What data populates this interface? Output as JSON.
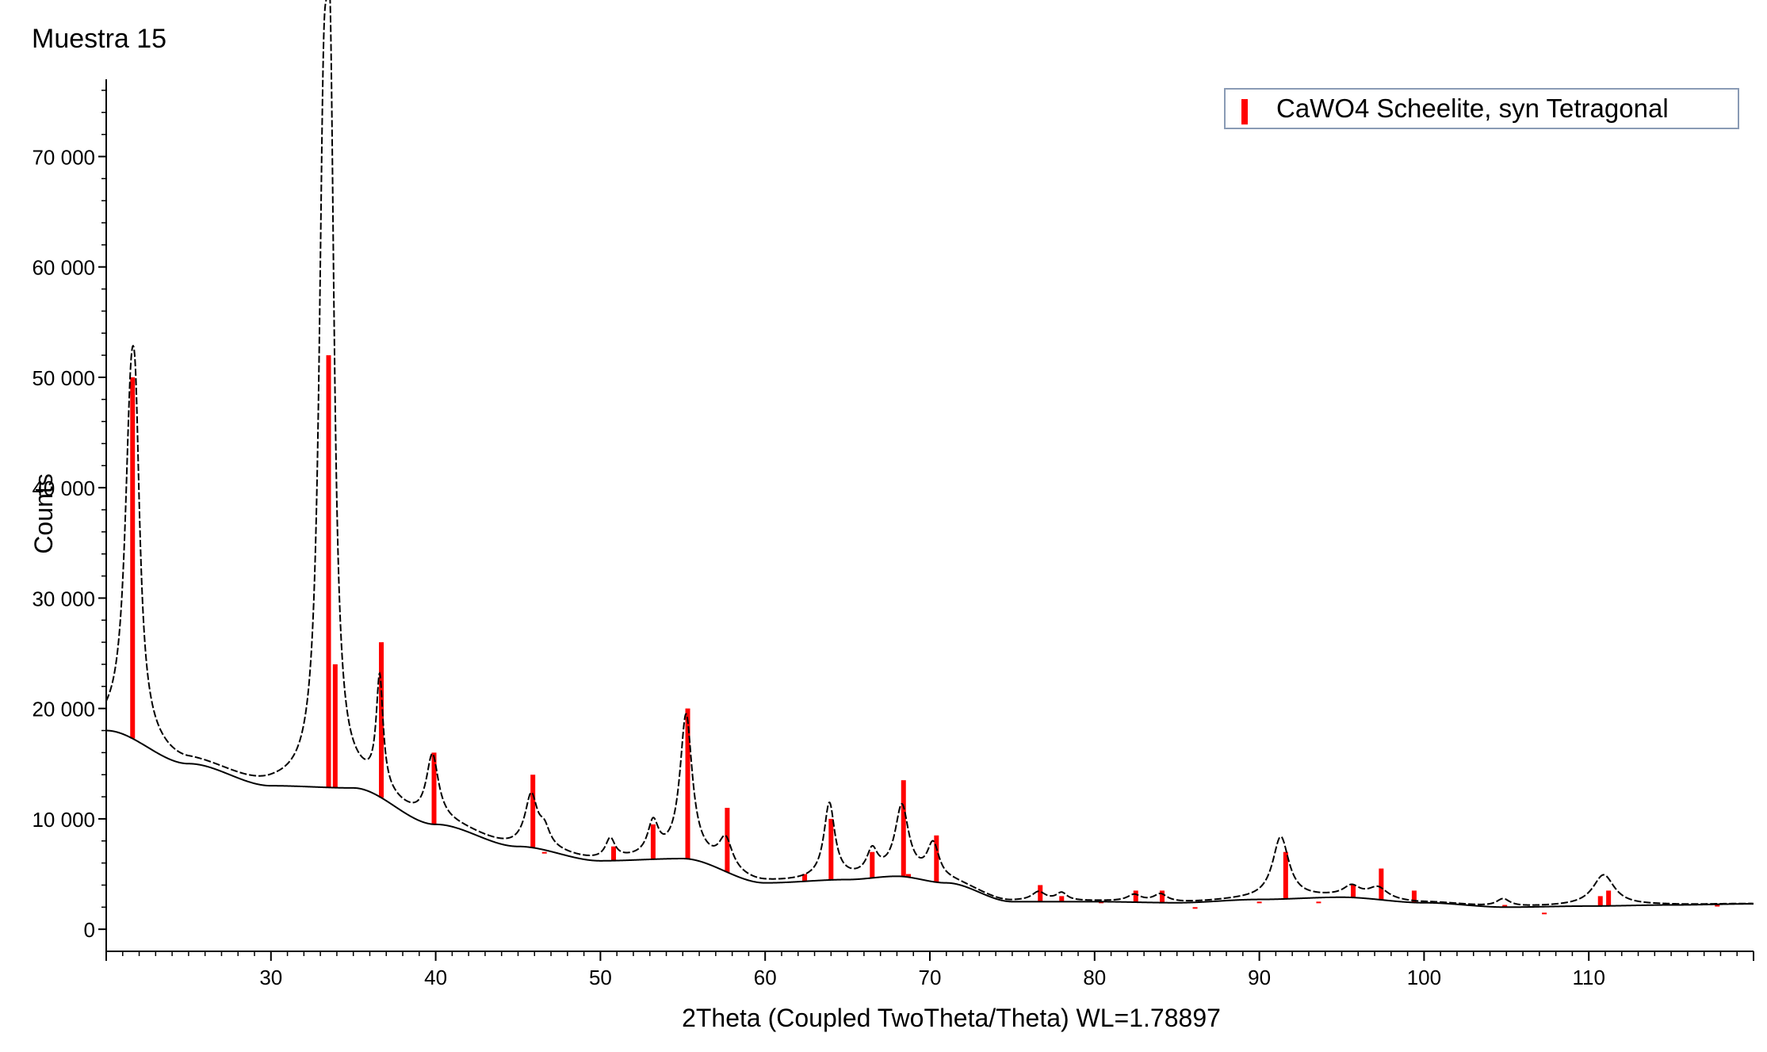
{
  "chart_data": {
    "type": "line",
    "title": "Muestra 15",
    "xlabel": "2Theta (Coupled TwoTheta/Theta) WL=1.78897",
    "ylabel": "Counts",
    "xlim": [
      20,
      120
    ],
    "ylim": [
      -2000,
      77000
    ],
    "x_ticks": [
      30,
      40,
      50,
      60,
      70,
      80,
      90,
      100,
      110
    ],
    "y_ticks": [
      {
        "value": 0,
        "label": "0"
      },
      {
        "value": 10000,
        "label": "10 000"
      },
      {
        "value": 20000,
        "label": "20 000"
      },
      {
        "value": 30000,
        "label": "30 000"
      },
      {
        "value": 40000,
        "label": "40 000"
      },
      {
        "value": 50000,
        "label": "50 000"
      },
      {
        "value": 60000,
        "label": "60 000"
      },
      {
        "value": 70000,
        "label": "70 000"
      }
    ],
    "grid": false,
    "legend_position": "top-right",
    "legend": [
      {
        "label": "CaWO4 Scheelite, syn Tetragonal",
        "color": "#ff0000"
      }
    ],
    "colors": {
      "pattern": "#000000",
      "background_curve": "#000000",
      "reference": "#ff0000"
    },
    "background_points": [
      [
        20,
        18000
      ],
      [
        25,
        15000
      ],
      [
        30,
        13000
      ],
      [
        35,
        12800
      ],
      [
        40,
        9500
      ],
      [
        45,
        7500
      ],
      [
        50,
        6200
      ],
      [
        55,
        6400
      ],
      [
        60,
        4200
      ],
      [
        65,
        4500
      ],
      [
        68,
        4800
      ],
      [
        71,
        4200
      ],
      [
        75,
        2500
      ],
      [
        80,
        2500
      ],
      [
        85,
        2400
      ],
      [
        90,
        2700
      ],
      [
        95,
        2900
      ],
      [
        100,
        2400
      ],
      [
        105,
        2000
      ],
      [
        110,
        2100
      ],
      [
        115,
        2200
      ],
      [
        120,
        2300
      ]
    ],
    "peaks": [
      {
        "x": 21.5,
        "height": 27000,
        "width": 0.45
      },
      {
        "x": 21.8,
        "height": 14000,
        "width": 0.3
      },
      {
        "x": 33.2,
        "height": 50000,
        "width": 0.35
      },
      {
        "x": 33.6,
        "height": 49000,
        "width": 0.3
      },
      {
        "x": 36.6,
        "height": 10000,
        "width": 0.25
      },
      {
        "x": 39.8,
        "height": 6000,
        "width": 0.45
      },
      {
        "x": 45.8,
        "height": 4500,
        "width": 0.45
      },
      {
        "x": 46.6,
        "height": 1500,
        "width": 0.4
      },
      {
        "x": 50.6,
        "height": 1800,
        "width": 0.35
      },
      {
        "x": 53.2,
        "height": 3000,
        "width": 0.4
      },
      {
        "x": 55.2,
        "height": 12800,
        "width": 0.45
      },
      {
        "x": 57.6,
        "height": 2700,
        "width": 0.5
      },
      {
        "x": 63.9,
        "height": 6800,
        "width": 0.4
      },
      {
        "x": 66.5,
        "height": 2200,
        "width": 0.4
      },
      {
        "x": 68.3,
        "height": 6200,
        "width": 0.5
      },
      {
        "x": 70.2,
        "height": 3200,
        "width": 0.45
      },
      {
        "x": 76.6,
        "height": 800,
        "width": 0.5
      },
      {
        "x": 78.0,
        "height": 700,
        "width": 0.4
      },
      {
        "x": 82.4,
        "height": 600,
        "width": 0.5
      },
      {
        "x": 84.0,
        "height": 700,
        "width": 0.5
      },
      {
        "x": 91.3,
        "height": 5600,
        "width": 0.6
      },
      {
        "x": 95.6,
        "height": 900,
        "width": 0.6
      },
      {
        "x": 97.2,
        "height": 1000,
        "width": 0.7
      },
      {
        "x": 104.8,
        "height": 700,
        "width": 0.5
      },
      {
        "x": 110.9,
        "height": 2800,
        "width": 0.8
      }
    ],
    "reference_lines": [
      {
        "x": 21.6,
        "y": 50000
      },
      {
        "x": 33.5,
        "y": 52000
      },
      {
        "x": 33.9,
        "y": 24000
      },
      {
        "x": 36.7,
        "y": 26000
      },
      {
        "x": 39.9,
        "y": 16000
      },
      {
        "x": 45.9,
        "y": 14000
      },
      {
        "x": 46.6,
        "y": 7000
      },
      {
        "x": 50.8,
        "y": 7500
      },
      {
        "x": 53.2,
        "y": 9500
      },
      {
        "x": 55.3,
        "y": 20000
      },
      {
        "x": 57.7,
        "y": 11000
      },
      {
        "x": 62.4,
        "y": 5000
      },
      {
        "x": 64.0,
        "y": 10000
      },
      {
        "x": 66.5,
        "y": 7000
      },
      {
        "x": 68.4,
        "y": 13500
      },
      {
        "x": 68.7,
        "y": 5000
      },
      {
        "x": 70.4,
        "y": 8500
      },
      {
        "x": 76.7,
        "y": 4000
      },
      {
        "x": 78.0,
        "y": 3000
      },
      {
        "x": 80.4,
        "y": 2500
      },
      {
        "x": 82.5,
        "y": 3500
      },
      {
        "x": 84.1,
        "y": 3500
      },
      {
        "x": 86.1,
        "y": 2000
      },
      {
        "x": 90.0,
        "y": 2500
      },
      {
        "x": 91.6,
        "y": 7000
      },
      {
        "x": 93.6,
        "y": 2500
      },
      {
        "x": 95.7,
        "y": 4000
      },
      {
        "x": 97.4,
        "y": 5500
      },
      {
        "x": 99.4,
        "y": 3500
      },
      {
        "x": 104.9,
        "y": 2200
      },
      {
        "x": 107.3,
        "y": 1500
      },
      {
        "x": 110.7,
        "y": 3000
      },
      {
        "x": 111.2,
        "y": 3500
      },
      {
        "x": 117.8,
        "y": 2200
      }
    ]
  }
}
